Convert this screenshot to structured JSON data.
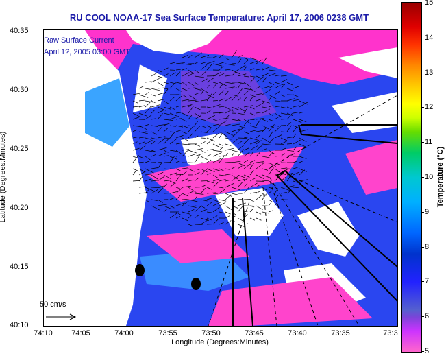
{
  "title": "RU COOL  NOAA-17  Sea Surface Temperature:  April 17, 2006 0238 GMT",
  "legend": {
    "line1": "Raw Surface Current",
    "line2": "April 1?, 2005 03:00 GMT"
  },
  "scale_label": "50 cm/s",
  "axes": {
    "xlabel": "Longitude (Degrees:Minutes)",
    "ylabel": "Latitude (Degrees:Minutes)",
    "xticks": [
      "74:10",
      "74:05",
      "74:00",
      "73:55",
      "73:50",
      "73:45",
      "73:40",
      "73:35",
      "73:3"
    ],
    "yticks": [
      "40:35",
      "40:30",
      "40:25",
      "40:20",
      "40:15",
      "40:10"
    ]
  },
  "colorbar": {
    "label": "Temperature (°C)",
    "ticks": [
      "15",
      "14",
      "13",
      "12",
      "11",
      "10",
      "9",
      "8",
      "7",
      "6",
      "5"
    ],
    "range": [
      5,
      15
    ]
  },
  "colors": {
    "title": "#1a1aa8",
    "land": "#ffffff",
    "cool_water": "#ff33cc",
    "warm_water": "#1e40ff"
  }
}
